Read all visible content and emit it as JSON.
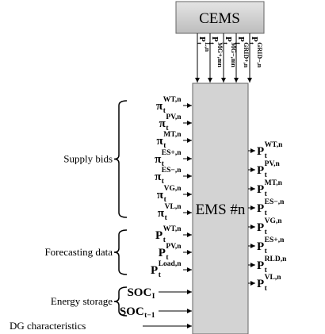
{
  "cems": {
    "label": "CEMS"
  },
  "ems": {
    "label": "EMS #n"
  },
  "top_signals": [
    {
      "symbol": "P",
      "sub": "t",
      "sup": "L,n"
    },
    {
      "symbol": "P",
      "sub": "t",
      "sup": "MG+,mn"
    },
    {
      "symbol": "P",
      "sub": "t",
      "sup": "MG−,mn"
    },
    {
      "symbol": "P",
      "sub": "t",
      "sup": "GRID+,n"
    },
    {
      "symbol": "P",
      "sub": "t",
      "sup": "GRID−,n"
    }
  ],
  "input_groups": [
    {
      "label": "Supply bids",
      "inputs": [
        {
          "symbol": "π",
          "sub": "t",
          "sup": "WT,n"
        },
        {
          "symbol": "π",
          "sub": "t",
          "sup": "PV,n"
        },
        {
          "symbol": "π",
          "sub": "t",
          "sup": "MT,n"
        },
        {
          "symbol": "π",
          "sub": "t",
          "sup": "ES+,n"
        },
        {
          "symbol": "π",
          "sub": "t",
          "sup": "ES−,n"
        },
        {
          "symbol": "π",
          "sub": "t",
          "sup": "VG,n"
        },
        {
          "symbol": "π",
          "sub": "t",
          "sup": "VL,n"
        }
      ]
    },
    {
      "label": "Forecasting data",
      "inputs": [
        {
          "symbol": "P",
          "sub": "t",
          "sup": "WT,n"
        },
        {
          "symbol": "P",
          "sub": "t",
          "sup": "PV,n"
        },
        {
          "symbol": "P",
          "sub": "t",
          "sup": "Load,n"
        }
      ]
    },
    {
      "label": "Energy storage",
      "inputs": [
        {
          "symbol": "SOC",
          "sub": "I"
        },
        {
          "symbol": "SOC",
          "sub": "t−1"
        }
      ]
    }
  ],
  "dg_input": {
    "label": "DG characteristics"
  },
  "outputs": [
    {
      "symbol": "P",
      "sub": "t",
      "sup": "WT,n"
    },
    {
      "symbol": "P",
      "sub": "t",
      "sup": "PV,n"
    },
    {
      "symbol": "P",
      "sub": "t",
      "sup": "MT,n"
    },
    {
      "symbol": "P",
      "sub": "t",
      "sup": "ES−,n"
    },
    {
      "symbol": "P",
      "sub": "t",
      "sup": "VG,n"
    },
    {
      "symbol": "P",
      "sub": "t",
      "sup": "ES+,n"
    },
    {
      "symbol": "P",
      "sub": "t",
      "sup": "RLD,n"
    },
    {
      "symbol": "P",
      "sub": "t",
      "sup": "VL,n"
    }
  ]
}
